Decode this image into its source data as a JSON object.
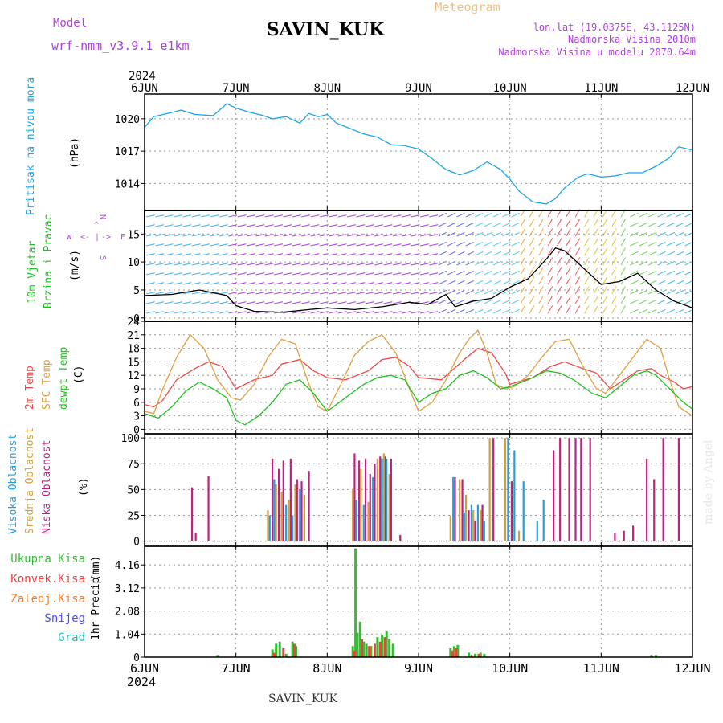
{
  "header": {
    "model_label": "Model",
    "model_name": "wrf-nmm_v3.9.1  e1km",
    "station": "SAVIN_KUK",
    "meteogram_label": "Meteogram",
    "coords": "lon,lat (19.0375E, 43.1125N)",
    "altitude": "Nadmorska Visina 2010m",
    "model_altitude": "Nadmorska Visina u modelu 2070.64m",
    "footer_station": "SAVIN_KUK",
    "watermark": "made by Angel"
  },
  "time_axis": {
    "year": "2024",
    "days": [
      "6JUN",
      "7JUN",
      "8JUN",
      "9JUN",
      "10JUN",
      "11JUN",
      "12JUN"
    ]
  },
  "colors": {
    "pressure": "#1aa7e6",
    "temp2m": "#f04848",
    "sfc": "#e0a040",
    "dewpt": "#20c020",
    "high_cloud": "#20a0e0",
    "mid_cloud": "#d0a040",
    "low_cloud": "#c02080",
    "total_precip": "#30c030",
    "conv_precip": "#f04040",
    "frozen": "#f08030",
    "snow": "#5050f0",
    "hail": "#20c0c0",
    "wind_label": "#20c020",
    "compass": "#b050e0",
    "model_text": "#b040e0"
  },
  "chart_data": [
    {
      "type": "line",
      "panel": "pressure",
      "ylabel": "Pritisak na nivou mora",
      "unit": "(hPa)",
      "yticks": [
        1014,
        1017,
        1020
      ],
      "ylim": [
        1011.5,
        1022.3
      ],
      "series": [
        {
          "color_key": "pressure",
          "x": [
            0,
            0.1,
            0.25,
            0.4,
            0.55,
            0.75,
            0.9,
            1.0,
            1.15,
            1.3,
            1.4,
            1.55,
            1.7,
            1.8,
            1.9,
            2.0,
            2.1,
            2.25,
            2.4,
            2.55,
            2.7,
            2.85,
            3.0,
            3.15,
            3.3,
            3.45,
            3.6,
            3.75,
            3.9,
            4.0,
            4.1,
            4.25,
            4.4,
            4.5,
            4.6,
            4.75,
            4.85,
            5.0,
            5.15,
            5.3,
            5.45,
            5.6,
            5.75,
            5.85,
            5.95,
            6.0
          ],
          "y": [
            1019.2,
            1020.2,
            1020.5,
            1020.8,
            1020.4,
            1020.3,
            1021.4,
            1021.0,
            1020.6,
            1020.3,
            1020.0,
            1020.2,
            1019.6,
            1020.5,
            1020.2,
            1020.4,
            1019.6,
            1019.1,
            1018.6,
            1018.3,
            1017.6,
            1017.5,
            1017.2,
            1016.3,
            1015.3,
            1014.8,
            1015.2,
            1016.0,
            1015.3,
            1014.4,
            1013.3,
            1012.3,
            1012.1,
            1012.6,
            1013.6,
            1014.6,
            1014.9,
            1014.6,
            1014.7,
            1015.0,
            1015.0,
            1015.6,
            1016.4,
            1017.4,
            1017.2,
            1017.1
          ]
        }
      ]
    },
    {
      "type": "line",
      "panel": "wind",
      "ylabel": [
        "10m Vjetar",
        "Brzina i Pravac"
      ],
      "unit": "(m/s)",
      "yticks": [
        0,
        5,
        10,
        15
      ],
      "ylim": [
        -0.6,
        19.2
      ],
      "compass": {
        "n": "N",
        "e": "E",
        "w": "W",
        "s": "S",
        "arrow_up": "^",
        "arrow_left": "<-",
        "arrow_right": "->",
        "bar": "|"
      },
      "series": [
        {
          "name_color": "black",
          "x": [
            0,
            0.3,
            0.6,
            0.9,
            1.0,
            1.2,
            1.5,
            1.8,
            2.0,
            2.3,
            2.6,
            2.9,
            3.1,
            3.3,
            3.4,
            3.6,
            3.8,
            4.0,
            4.2,
            4.4,
            4.5,
            4.6,
            4.8,
            5.0,
            5.2,
            5.4,
            5.6,
            5.8,
            6.0
          ],
          "y": [
            4.0,
            4.2,
            5.0,
            4.0,
            2.2,
            1.2,
            1.0,
            1.5,
            1.8,
            1.5,
            2.0,
            2.8,
            2.4,
            4.2,
            2.0,
            3.0,
            3.5,
            5.5,
            7.0,
            10.5,
            12.5,
            12.0,
            9.0,
            6.0,
            6.5,
            8.0,
            5.0,
            3.0,
            1.8
          ]
        }
      ]
    },
    {
      "type": "line",
      "panel": "temperature",
      "ylabel": [
        "2m Temp",
        "SFC Temp",
        "dewpt Temp"
      ],
      "unit": "(C)",
      "yticks": [
        0,
        3,
        6,
        9,
        12,
        15,
        18,
        21,
        24
      ],
      "ylim": [
        -1,
        24
      ],
      "series": [
        {
          "name": "2m Temp",
          "color_key": "temp2m",
          "x": [
            0,
            0.1,
            0.2,
            0.35,
            0.55,
            0.7,
            0.85,
            1.0,
            1.2,
            1.4,
            1.5,
            1.7,
            1.85,
            2.0,
            2.2,
            2.45,
            2.6,
            2.75,
            2.9,
            3.0,
            3.25,
            3.5,
            3.65,
            3.8,
            3.95,
            4.0,
            4.25,
            4.45,
            4.6,
            4.8,
            4.95,
            5.1,
            5.4,
            5.55,
            5.65,
            5.8,
            5.9,
            6.0
          ],
          "y": [
            5.5,
            5.0,
            6.5,
            11.0,
            13.5,
            15.0,
            14.0,
            9.0,
            11.0,
            12.0,
            14.5,
            15.5,
            13.0,
            11.5,
            11.0,
            13.0,
            15.5,
            16.0,
            14.0,
            11.5,
            11.0,
            15.5,
            18.0,
            17.0,
            12.5,
            10.0,
            11.5,
            14.0,
            15.0,
            13.5,
            12.5,
            9.0,
            13.0,
            13.5,
            12.0,
            10.5,
            9.0,
            9.5
          ]
        },
        {
          "name": "SFC Temp",
          "color_key": "sfc",
          "x": [
            0,
            0.1,
            0.2,
            0.35,
            0.5,
            0.65,
            0.8,
            0.95,
            1.05,
            1.2,
            1.35,
            1.5,
            1.65,
            1.8,
            1.9,
            2.0,
            2.15,
            2.3,
            2.45,
            2.6,
            2.75,
            2.9,
            3.0,
            3.15,
            3.3,
            3.45,
            3.55,
            3.65,
            3.75,
            3.85,
            3.95,
            4.05,
            4.2,
            4.35,
            4.5,
            4.65,
            4.8,
            4.95,
            5.05,
            5.2,
            5.35,
            5.5,
            5.65,
            5.75,
            5.85,
            6.0
          ],
          "y": [
            4.0,
            3.5,
            9.0,
            16.0,
            21.0,
            18.0,
            11.0,
            7.0,
            6.5,
            10.0,
            16.0,
            20.0,
            19.0,
            10.0,
            5.0,
            4.0,
            10.0,
            16.5,
            19.5,
            21.0,
            17.0,
            9.0,
            4.0,
            6.0,
            11.0,
            17.0,
            20.0,
            22.0,
            17.0,
            10.0,
            9.0,
            9.5,
            12.0,
            16.0,
            19.5,
            20.0,
            14.0,
            9.0,
            8.0,
            12.0,
            16.0,
            20.0,
            18.0,
            11.0,
            5.0,
            3.0
          ]
        },
        {
          "name": "dewpt Temp",
          "color_key": "dewpt",
          "x": [
            0,
            0.15,
            0.3,
            0.45,
            0.6,
            0.75,
            0.9,
            1.0,
            1.1,
            1.25,
            1.4,
            1.55,
            1.7,
            1.85,
            2.0,
            2.2,
            2.4,
            2.55,
            2.7,
            2.85,
            3.0,
            3.15,
            3.3,
            3.45,
            3.6,
            3.75,
            3.9,
            4.0,
            4.2,
            4.4,
            4.55,
            4.7,
            4.9,
            5.05,
            5.2,
            5.35,
            5.5,
            5.6,
            5.75,
            5.9,
            6.0
          ],
          "y": [
            3.5,
            2.5,
            5.0,
            8.5,
            10.5,
            9.0,
            7.0,
            2.0,
            1.0,
            3.0,
            6.0,
            10.0,
            11.0,
            8.0,
            4.0,
            7.0,
            10.0,
            11.5,
            12.0,
            11.0,
            6.0,
            8.0,
            9.0,
            12.0,
            13.0,
            11.5,
            9.0,
            9.5,
            11.0,
            13.0,
            12.5,
            11.0,
            8.0,
            7.0,
            9.5,
            12.0,
            13.0,
            12.0,
            9.0,
            6.0,
            4.5
          ]
        }
      ]
    },
    {
      "type": "bar",
      "panel": "clouds",
      "ylabel": [
        "Visoka Oblacnost",
        "Srednja Oblacnost",
        "Niska Oblacnost"
      ],
      "unit": "(%)",
      "yticks": [
        0,
        25,
        50,
        75,
        100
      ],
      "ylim": [
        -5,
        104
      ],
      "series": [
        {
          "name": "Niska Oblacnost",
          "color_key": "low_cloud",
          "x": [
            0.52,
            0.56,
            0.7,
            1.4,
            1.47,
            1.52,
            1.6,
            1.67,
            1.72,
            1.8,
            2.3,
            2.35,
            2.42,
            2.47,
            2.52,
            2.58,
            2.63,
            2.7,
            2.8,
            3.4,
            3.48,
            3.55,
            3.62,
            3.7,
            3.82,
            4.02,
            4.48,
            4.55,
            4.65,
            4.72,
            4.78,
            4.88,
            5.15,
            5.25,
            5.35,
            5.5,
            5.58,
            5.68,
            5.85
          ],
          "y": [
            52,
            8,
            63,
            80,
            70,
            78,
            80,
            60,
            58,
            68,
            85,
            78,
            80,
            65,
            75,
            82,
            82,
            80,
            6,
            62,
            60,
            30,
            20,
            35,
            100,
            58,
            88,
            100,
            100,
            100,
            100,
            100,
            8,
            10,
            15,
            80,
            60,
            100,
            100
          ]
        },
        {
          "name": "Srednja Oblacnost",
          "color_key": "mid_cloud",
          "x": [
            1.35,
            1.44,
            1.5,
            1.58,
            1.65,
            1.75,
            2.28,
            2.37,
            2.45,
            2.55,
            2.62,
            2.68,
            3.35,
            3.45,
            3.52,
            3.6,
            3.68,
            3.78,
            3.95,
            4.1
          ],
          "y": [
            30,
            55,
            48,
            40,
            55,
            45,
            50,
            70,
            38,
            80,
            85,
            65,
            25,
            60,
            45,
            30,
            30,
            100,
            100,
            10
          ]
        },
        {
          "name": "Visoka Oblacnost",
          "color_key": "high_cloud",
          "x": [
            1.37,
            1.42,
            1.55,
            1.62,
            1.7,
            2.32,
            2.4,
            2.5,
            2.6,
            2.65,
            3.38,
            3.5,
            3.58,
            3.65,
            3.72,
            3.98,
            4.05,
            4.15,
            4.3,
            4.37
          ],
          "y": [
            25,
            60,
            35,
            25,
            50,
            40,
            35,
            62,
            80,
            80,
            62,
            28,
            35,
            35,
            20,
            100,
            88,
            58,
            20,
            40
          ]
        }
      ]
    },
    {
      "type": "bar",
      "panel": "precipitation",
      "ylabel": "1hr Precip",
      "unit": "(mm)",
      "yticks": [
        0,
        1.04,
        2.08,
        3.12,
        4.16
      ],
      "ylim": [
        0,
        5.0
      ],
      "legend": [
        "Ukupna Kisa",
        "Konvek.Kisa",
        "Zaledj.Kisa",
        "Snijeg",
        "Grad"
      ],
      "series": [
        {
          "name": "Ukupna Kisa",
          "color_key": "total_precip",
          "x": [
            0.8,
            1.4,
            1.44,
            1.48,
            1.55,
            1.62,
            1.66,
            2.28,
            2.31,
            2.33,
            2.36,
            2.4,
            2.43,
            2.48,
            2.55,
            2.6,
            2.65,
            2.68,
            2.72,
            3.35,
            3.39,
            3.43,
            3.55,
            3.62,
            3.68,
            3.72,
            5.55,
            5.6
          ],
          "y": [
            0.1,
            0.35,
            0.6,
            0.7,
            0.15,
            0.7,
            0.5,
            0.5,
            4.9,
            1.1,
            1.6,
            0.7,
            0.6,
            0.5,
            0.9,
            1.0,
            1.2,
            0.8,
            0.6,
            0.4,
            0.5,
            0.55,
            0.2,
            0.15,
            0.2,
            0.15,
            0.1,
            0.1
          ]
        },
        {
          "name": "Konvek.Kisa",
          "color_key": "conv_precip",
          "x": [
            1.42,
            1.52,
            1.64,
            2.3,
            2.38,
            2.46,
            2.52,
            2.58,
            2.63,
            3.37,
            3.41,
            3.58,
            3.66
          ],
          "y": [
            0.2,
            0.4,
            0.6,
            0.3,
            0.8,
            0.5,
            0.6,
            0.7,
            0.9,
            0.3,
            0.4,
            0.1,
            0.15
          ]
        }
      ]
    }
  ]
}
